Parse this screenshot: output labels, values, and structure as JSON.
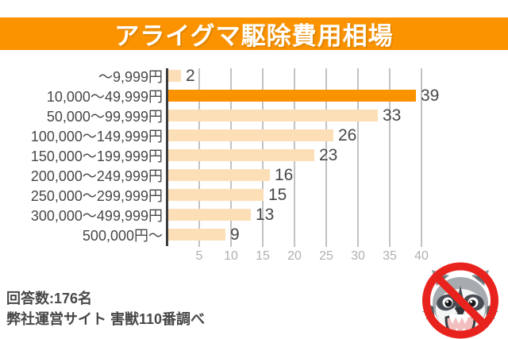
{
  "header": {
    "title": "アライグマ駆除費用相場",
    "bg_color": "#FB9300",
    "text_color": "#FFFFFF"
  },
  "chart_data": {
    "type": "bar",
    "orientation": "horizontal",
    "title": "アライグマ駆除費用相場",
    "categories": [
      "〜9,999円",
      "10,000〜49,999円",
      "50,000〜99,999円",
      "100,000〜149,999円",
      "150,000〜199,999円",
      "200,000〜249,999円",
      "250,000〜299,999円",
      "300,000〜499,999円",
      "500,000円〜"
    ],
    "values": [
      2,
      39,
      33,
      26,
      23,
      16,
      15,
      13,
      9
    ],
    "highlight_index": 1,
    "x_ticks": [
      5,
      10,
      15,
      20,
      25,
      30,
      35,
      40
    ],
    "xlim": [
      0,
      41
    ],
    "grid": true,
    "legend": false,
    "data_labels": true,
    "colors": {
      "bar": "#FDDFB7",
      "highlight_bar": "#FB9300",
      "axis": "#3C3C3C",
      "gridline": "#C2C2C2",
      "label_text": "#474747",
      "tick_text": "#B0B0B0"
    }
  },
  "footer": {
    "line1": "回答数:176名",
    "line2": "弊社運営サイト 害獣110番調べ",
    "text_color": "#474747"
  },
  "icons": {
    "bottom_right": "no-raccoon-icon",
    "prohibition_color": "#E8231D",
    "raccoon_gray": "#A6ABAF",
    "raccoon_dark": "#474D53"
  }
}
